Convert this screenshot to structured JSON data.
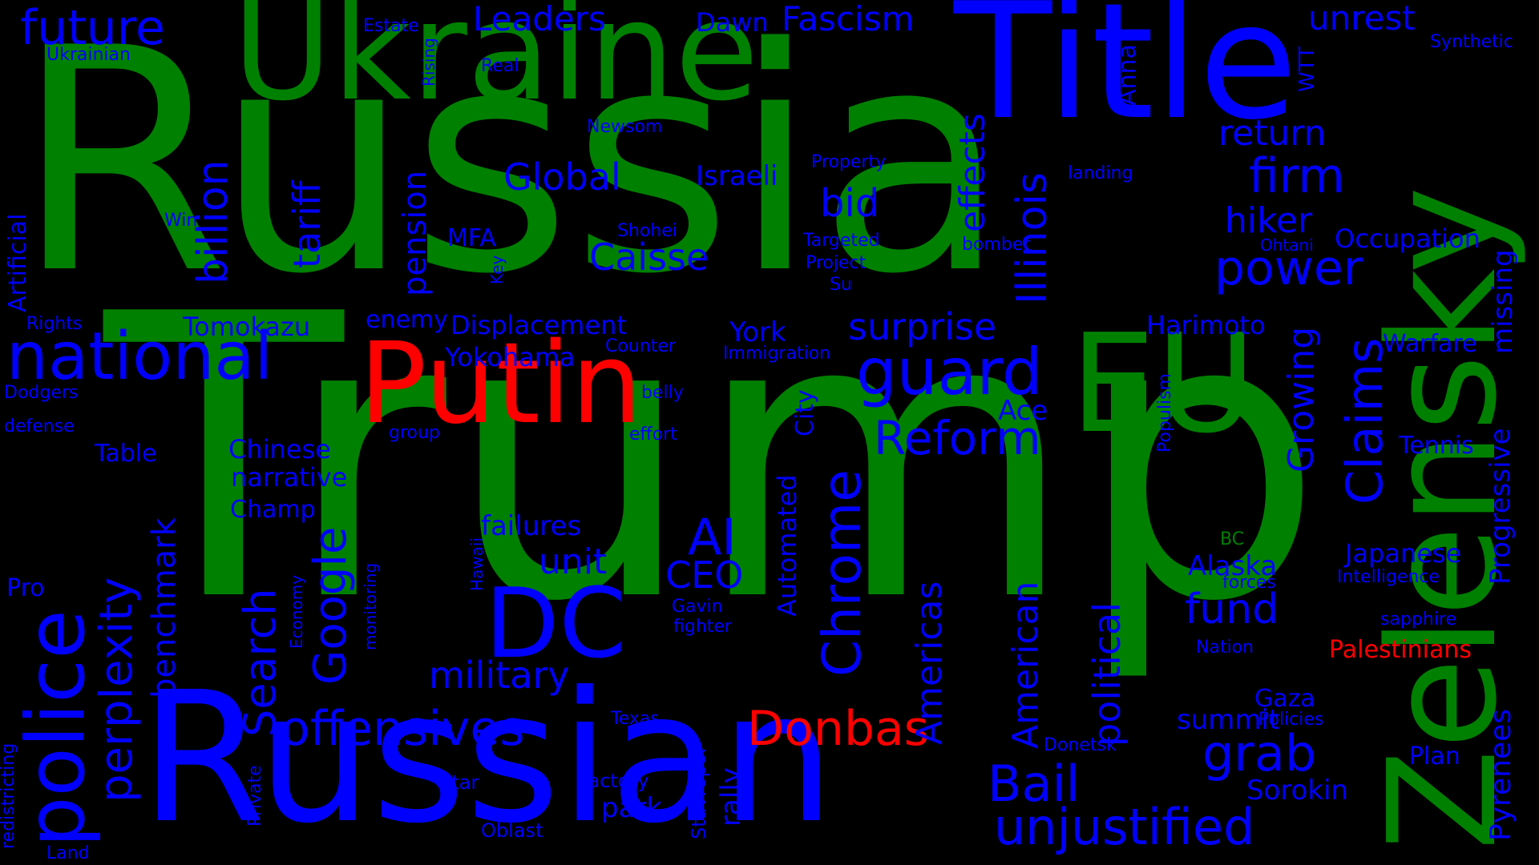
{
  "colors": {
    "background": "#000000",
    "green": "#008000",
    "blue": "#0000ff",
    "red": "#ff0000"
  },
  "words": [
    "Trump",
    "Russia",
    "Russian",
    "Putin",
    "Ukraine",
    "Title",
    "Zelensky",
    "EU",
    "DC",
    "police",
    "national",
    "guard",
    "offensives",
    "Donbas",
    "Palestinians",
    "future",
    "Leaders",
    "Dawn",
    "Fascism",
    "unrest",
    "Estate",
    "Ukrainian",
    "Synthetic",
    "WTT",
    "Real",
    "Rising",
    "Anna",
    "return",
    "firm",
    "billion",
    "tariff",
    "pension",
    "effects",
    "Illinois",
    "Global",
    "Israeli",
    "bid",
    "Newsom",
    "Property",
    "landing",
    "hiker",
    "Occupation",
    "missing",
    "Artificial",
    "Win",
    "MFA",
    "Caisse",
    "Shohei",
    "Key",
    "Targeted",
    "Project",
    "Su",
    "bomber",
    "Ohtani",
    "power",
    "Rights",
    "Tomokazu",
    "enemy",
    "Displacement",
    "surprise",
    "Harimoto",
    "Growing",
    "Claims",
    "Progressive",
    "Warfare",
    "Yokohama",
    "Counter",
    "Immigration",
    "York",
    "Populism",
    "Dodgers",
    "belly",
    "Reform",
    "Ace",
    "defense",
    "group",
    "effort",
    "City",
    "Tennis",
    "Table",
    "Chinese",
    "narrative",
    "Champ",
    "perplexity",
    "benchmark",
    "Search",
    "Google",
    "Chrome",
    "Americas",
    "American",
    "political",
    "AI",
    "failures",
    "unit",
    "CEO",
    "Automated",
    "Alaska",
    "Japanese",
    "BC",
    "Intelligence",
    "forces",
    "Pyrenees",
    "Pro",
    "Economy",
    "monitoring",
    "Hawaii",
    "military",
    "Gavin",
    "fighter",
    "fund",
    "sapphire",
    "Nation",
    "Gaza",
    "Policies",
    "summit",
    "Texas",
    "grab",
    "redistricting",
    "Private",
    "Stavropol",
    "rally",
    "Bail",
    "Donetsk",
    "Plan",
    "Star",
    "factory",
    "park",
    "Sorokin",
    "unjustified",
    "Oblast",
    "Land"
  ]
}
